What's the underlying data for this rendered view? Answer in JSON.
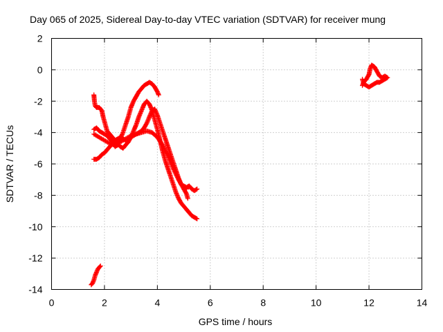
{
  "chart_data": {
    "type": "scatter",
    "title": "Day 065 of 2025, Sidereal Day-to-day VTEC variation (SDTVAR) for receiver mung",
    "xlabel": "GPS time / hours",
    "ylabel": "SDTVAR / TECUs",
    "xlim": [
      0,
      14
    ],
    "ylim": [
      -14,
      2
    ],
    "xticks": [
      "0",
      "2",
      "4",
      "6",
      "8",
      "10",
      "12",
      "14"
    ],
    "yticks": [
      "2",
      "0",
      "-2",
      "-4",
      "-6",
      "-8",
      "-10",
      "-12",
      "-14"
    ],
    "grid": true,
    "marker": "+",
    "color": "#ff0000",
    "series": [
      {
        "points": [
          [
            1.5,
            -13.7
          ],
          [
            1.55,
            -13.6
          ],
          [
            1.6,
            -13.4
          ],
          [
            1.65,
            -13.1
          ],
          [
            1.7,
            -12.9
          ],
          [
            1.75,
            -12.7
          ],
          [
            1.8,
            -12.6
          ],
          [
            1.85,
            -12.5
          ]
        ]
      },
      {
        "points": [
          [
            1.6,
            -1.6
          ],
          [
            1.62,
            -2.0
          ],
          [
            1.65,
            -2.3
          ],
          [
            1.7,
            -2.4
          ],
          [
            1.8,
            -2.4
          ],
          [
            1.9,
            -2.6
          ],
          [
            1.95,
            -3.0
          ],
          [
            2.0,
            -3.3
          ],
          [
            2.05,
            -3.6
          ],
          [
            2.1,
            -3.9
          ],
          [
            2.2,
            -4.1
          ],
          [
            2.3,
            -4.3
          ],
          [
            2.4,
            -4.5
          ],
          [
            2.5,
            -4.7
          ],
          [
            2.6,
            -4.9
          ],
          [
            2.7,
            -5.0
          ],
          [
            2.8,
            -4.8
          ],
          [
            2.9,
            -4.6
          ],
          [
            3.0,
            -4.3
          ],
          [
            3.1,
            -3.9
          ],
          [
            3.2,
            -3.5
          ],
          [
            3.3,
            -3.0
          ],
          [
            3.4,
            -2.6
          ],
          [
            3.5,
            -2.2
          ],
          [
            3.6,
            -2.0
          ],
          [
            3.7,
            -2.2
          ],
          [
            3.8,
            -2.6
          ],
          [
            3.9,
            -3.2
          ],
          [
            4.0,
            -3.8
          ],
          [
            4.1,
            -4.5
          ],
          [
            4.2,
            -5.2
          ],
          [
            4.3,
            -5.8
          ],
          [
            4.4,
            -6.3
          ],
          [
            4.5,
            -6.8
          ],
          [
            4.6,
            -7.3
          ],
          [
            4.7,
            -7.8
          ],
          [
            4.8,
            -8.2
          ],
          [
            4.9,
            -8.5
          ],
          [
            5.0,
            -8.7
          ],
          [
            5.1,
            -8.9
          ],
          [
            5.2,
            -9.1
          ],
          [
            5.3,
            -9.3
          ],
          [
            5.4,
            -9.4
          ],
          [
            5.5,
            -9.5
          ]
        ]
      },
      {
        "points": [
          [
            1.6,
            -3.8
          ],
          [
            1.7,
            -3.7
          ],
          [
            1.8,
            -3.9
          ],
          [
            1.9,
            -4.0
          ],
          [
            2.0,
            -4.1
          ],
          [
            2.1,
            -4.2
          ],
          [
            2.2,
            -4.4
          ],
          [
            2.3,
            -4.6
          ],
          [
            2.4,
            -4.9
          ],
          [
            2.5,
            -4.8
          ],
          [
            2.6,
            -4.4
          ],
          [
            2.7,
            -4.0
          ],
          [
            2.8,
            -3.5
          ],
          [
            2.9,
            -3.0
          ],
          [
            3.0,
            -2.4
          ],
          [
            3.1,
            -2.0
          ],
          [
            3.2,
            -1.7
          ],
          [
            3.3,
            -1.4
          ],
          [
            3.4,
            -1.2
          ],
          [
            3.5,
            -1.0
          ],
          [
            3.6,
            -0.9
          ],
          [
            3.7,
            -0.8
          ],
          [
            3.8,
            -0.9
          ],
          [
            3.9,
            -1.1
          ],
          [
            4.0,
            -1.4
          ],
          [
            4.05,
            -1.6
          ]
        ]
      },
      {
        "points": [
          [
            1.6,
            -5.7
          ],
          [
            1.7,
            -5.7
          ],
          [
            1.8,
            -5.6
          ],
          [
            1.9,
            -5.4
          ],
          [
            2.0,
            -5.3
          ],
          [
            2.1,
            -5.1
          ],
          [
            2.2,
            -4.9
          ],
          [
            2.3,
            -4.7
          ],
          [
            2.4,
            -4.5
          ],
          [
            2.5,
            -4.4
          ],
          [
            2.6,
            -4.3
          ],
          [
            2.7,
            -4.4
          ],
          [
            2.8,
            -4.5
          ],
          [
            2.9,
            -4.4
          ],
          [
            3.0,
            -4.3
          ],
          [
            3.1,
            -4.2
          ],
          [
            3.2,
            -4.1
          ],
          [
            3.3,
            -4.0
          ],
          [
            3.4,
            -3.9
          ],
          [
            3.5,
            -3.7
          ],
          [
            3.6,
            -3.4
          ],
          [
            3.7,
            -3.0
          ],
          [
            3.8,
            -2.6
          ],
          [
            3.9,
            -2.5
          ],
          [
            4.0,
            -2.9
          ],
          [
            4.1,
            -3.4
          ],
          [
            4.2,
            -3.9
          ],
          [
            4.3,
            -4.4
          ],
          [
            4.4,
            -4.9
          ],
          [
            4.5,
            -5.4
          ],
          [
            4.6,
            -5.9
          ],
          [
            4.7,
            -6.4
          ],
          [
            4.8,
            -6.9
          ],
          [
            4.9,
            -7.3
          ],
          [
            5.0,
            -7.5
          ],
          [
            5.1,
            -7.6
          ]
        ]
      },
      {
        "points": [
          [
            1.6,
            -4.1
          ],
          [
            1.8,
            -4.3
          ],
          [
            2.0,
            -4.5
          ],
          [
            2.2,
            -4.7
          ],
          [
            2.4,
            -4.8
          ],
          [
            2.6,
            -4.6
          ],
          [
            2.8,
            -4.4
          ],
          [
            3.0,
            -4.2
          ],
          [
            3.2,
            -4.1
          ],
          [
            3.4,
            -4.0
          ],
          [
            3.6,
            -3.9
          ],
          [
            3.8,
            -4.0
          ],
          [
            4.0,
            -4.3
          ],
          [
            4.2,
            -4.8
          ],
          [
            4.4,
            -5.5
          ],
          [
            4.6,
            -6.3
          ],
          [
            4.8,
            -7.0
          ],
          [
            5.0,
            -7.6
          ],
          [
            5.1,
            -7.9
          ],
          [
            5.15,
            -8.2
          ]
        ]
      },
      {
        "points": [
          [
            5.0,
            -7.4
          ],
          [
            5.1,
            -7.5
          ],
          [
            5.2,
            -7.4
          ],
          [
            5.3,
            -7.6
          ],
          [
            5.4,
            -7.7
          ],
          [
            5.5,
            -7.6
          ]
        ]
      },
      {
        "points": [
          [
            11.75,
            -1.0
          ],
          [
            11.8,
            -0.8
          ],
          [
            11.9,
            -0.6
          ],
          [
            12.0,
            -0.3
          ],
          [
            12.05,
            0.1
          ],
          [
            12.1,
            0.3
          ],
          [
            12.2,
            0.2
          ],
          [
            12.3,
            -0.1
          ],
          [
            12.4,
            -0.4
          ],
          [
            12.5,
            -0.5
          ],
          [
            12.6,
            -0.4
          ],
          [
            12.7,
            -0.5
          ],
          [
            12.6,
            -0.6
          ],
          [
            12.5,
            -0.7
          ],
          [
            12.4,
            -0.8
          ],
          [
            12.3,
            -0.8
          ],
          [
            12.2,
            -0.9
          ],
          [
            12.1,
            -1.0
          ],
          [
            12.0,
            -1.1
          ],
          [
            11.9,
            -1.0
          ],
          [
            11.8,
            -0.9
          ],
          [
            11.75,
            -0.6
          ]
        ]
      }
    ]
  }
}
